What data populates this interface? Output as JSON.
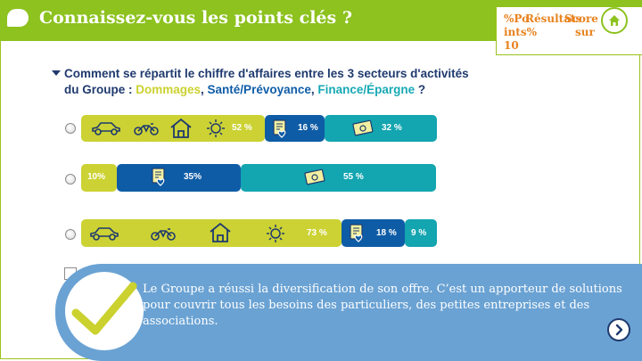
{
  "header": {
    "title": "Connaissez-vous les points clés ?",
    "score_panel": {
      "pct_label": "%Po",
      "results_label": "Résultats",
      "score_label": "Score",
      "points_label": "ints%",
      "sur_label": "sur",
      "value": "10"
    }
  },
  "question": {
    "line1": "Comment se répartit le chiffre d'affaires entre les 3 secteurs d'activités",
    "line2_prefix": "du Groupe : ",
    "dommages": "Dommages",
    "sep1": ", ",
    "sante": "Santé/Prévoyance",
    "sep2": ", ",
    "finance": "Finance/Épargne",
    "suffix": " ?"
  },
  "options": [
    {
      "dommages": "52 %",
      "sante": "16 %",
      "finance": "32 %"
    },
    {
      "dommages": "10%",
      "sante": "35%",
      "finance": "55 %"
    },
    {
      "dommages": "73 %",
      "sante": "18 %",
      "finance": "9 %"
    }
  ],
  "feedback": {
    "text": "Le Groupe a réussi la diversification de son offre. C’est un apporteur de solutions pour couvrir tous les besoins des particuliers, des petites entreprises et des associations."
  },
  "colors": {
    "header": "#8dc21f",
    "dommages": "#ccd233",
    "sante": "#0f5ca6",
    "finance": "#13a5b0",
    "feedback": "#6aa2d3",
    "score": "#e8821e"
  },
  "icons": [
    "chat-bubble-icon",
    "home-icon",
    "car-icon",
    "motorcycle-icon",
    "house-icon",
    "sun-icon",
    "medical-file-icon",
    "banknote-icon",
    "checkmark-icon",
    "chevron-right-icon"
  ]
}
